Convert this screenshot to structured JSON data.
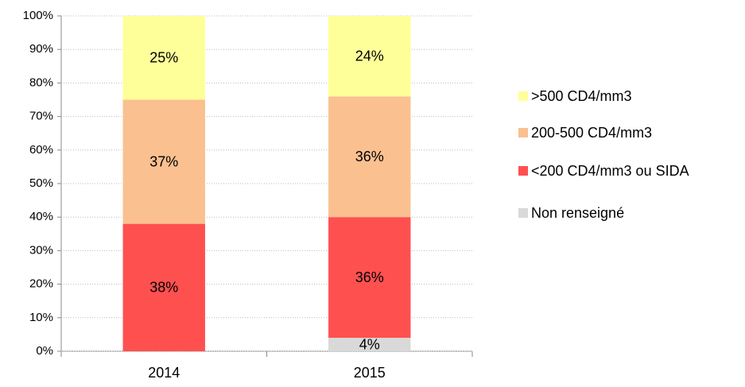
{
  "chart_data": {
    "type": "stacked_bar",
    "categories": [
      "2014",
      "2015"
    ],
    "series": [
      {
        "name": "Non renseigné",
        "color": "#d9d9d9",
        "values": [
          0,
          4
        ],
        "value_labels": [
          null,
          "4%"
        ]
      },
      {
        "name": "<200 CD4/mm3 ou SIDA",
        "color": "#ff5050",
        "values": [
          38,
          36
        ],
        "value_labels": [
          "38%",
          "36%"
        ]
      },
      {
        "name": "200-500 CD4/mm3",
        "color": "#fac090",
        "values": [
          37,
          36
        ],
        "value_labels": [
          "37%",
          "36%"
        ]
      },
      {
        "name": ">500 CD4/mm3",
        "color": "#ffff99",
        "values": [
          25,
          24
        ],
        "value_labels": [
          "25%",
          "24%"
        ]
      }
    ],
    "ylim": [
      0,
      100
    ],
    "yticks": [
      {
        "value": 0,
        "label": "0%"
      },
      {
        "value": 10,
        "label": "10%"
      },
      {
        "value": 20,
        "label": "20%"
      },
      {
        "value": 30,
        "label": "30%"
      },
      {
        "value": 40,
        "label": "40%"
      },
      {
        "value": 50,
        "label": "50%"
      },
      {
        "value": 60,
        "label": "60%"
      },
      {
        "value": 70,
        "label": "70%"
      },
      {
        "value": 80,
        "label": "80%"
      },
      {
        "value": 90,
        "label": "90%"
      },
      {
        "value": 100,
        "label": "100%"
      }
    ],
    "grid": true,
    "legend": "right"
  }
}
